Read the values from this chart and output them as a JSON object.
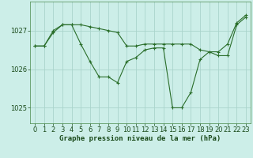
{
  "title": "Graphe pression niveau de la mer (hPa)",
  "bg_color": "#cceee8",
  "grid_color": "#aad4cc",
  "line_color": "#2a6e2a",
  "marker_color": "#2a6e2a",
  "xlim": [
    -0.5,
    23.5
  ],
  "ylim": [
    1024.6,
    1027.75
  ],
  "xticks": [
    0,
    1,
    2,
    3,
    4,
    5,
    6,
    7,
    8,
    9,
    10,
    11,
    12,
    13,
    14,
    15,
    16,
    17,
    18,
    19,
    20,
    21,
    22,
    23
  ],
  "yticks": [
    1025,
    1026,
    1027
  ],
  "series1_x": [
    0,
    1,
    2,
    3,
    4,
    5,
    6,
    7,
    8,
    9,
    10,
    11,
    12,
    13,
    14,
    15,
    16,
    17,
    18,
    19,
    20,
    21,
    22,
    23
  ],
  "series1_y": [
    1026.6,
    1026.6,
    1027.0,
    1027.15,
    1027.15,
    1027.15,
    1027.1,
    1027.05,
    1027.0,
    1026.95,
    1026.6,
    1026.6,
    1026.65,
    1026.65,
    1026.65,
    1026.65,
    1026.65,
    1026.65,
    1026.5,
    1026.45,
    1026.45,
    1026.65,
    1027.2,
    1027.4
  ],
  "series2_x": [
    0,
    1,
    2,
    3,
    4,
    5,
    6,
    7,
    8,
    9,
    10,
    11,
    12,
    13,
    14,
    15,
    16,
    17,
    18,
    19,
    20,
    21,
    22,
    23
  ],
  "series2_y": [
    1026.6,
    1026.6,
    1026.95,
    1027.15,
    1027.15,
    1026.65,
    1026.2,
    1025.8,
    1025.8,
    1025.65,
    1026.2,
    1026.3,
    1026.5,
    1026.55,
    1026.55,
    1025.0,
    1025.0,
    1025.4,
    1026.25,
    1026.45,
    1026.35,
    1026.35,
    1027.15,
    1027.35
  ],
  "tick_fontsize": 6,
  "title_fontsize": 6.5
}
